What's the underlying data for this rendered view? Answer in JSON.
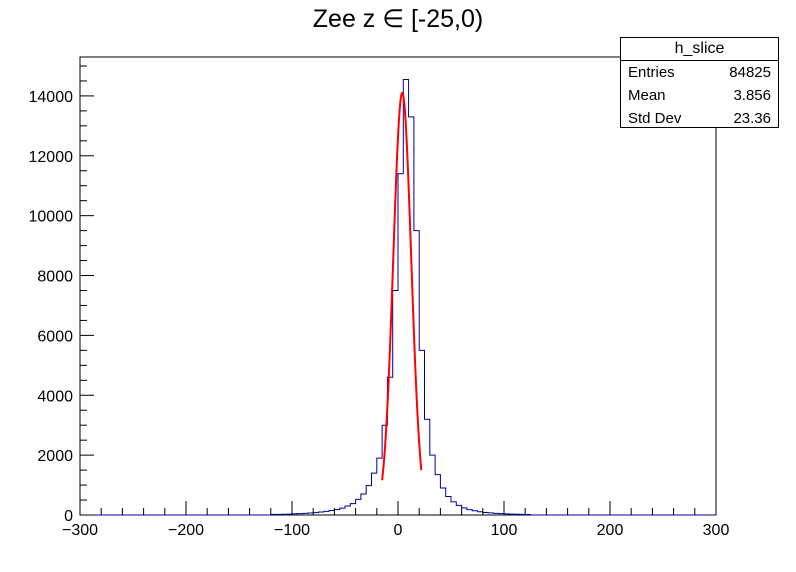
{
  "chart_data": {
    "type": "histogram",
    "title": "Zee z ∈ [-25,0)",
    "xlabel": "",
    "ylabel": "",
    "xlim": [
      -300,
      300
    ],
    "ylim": [
      0,
      15300
    ],
    "xticks": [
      -300,
      -200,
      -100,
      0,
      100,
      200,
      300
    ],
    "yticks": [
      0,
      2000,
      4000,
      6000,
      8000,
      10000,
      12000,
      14000
    ],
    "bin_width": 5,
    "bin_start": -300,
    "histogram_color": "#000099",
    "fit_color": "#ff0000",
    "bins_nonzero": [
      {
        "x": -120,
        "y": 20
      },
      {
        "x": -115,
        "y": 20
      },
      {
        "x": -110,
        "y": 25
      },
      {
        "x": -105,
        "y": 30
      },
      {
        "x": -100,
        "y": 40
      },
      {
        "x": -95,
        "y": 45
      },
      {
        "x": -90,
        "y": 55
      },
      {
        "x": -85,
        "y": 65
      },
      {
        "x": -80,
        "y": 80
      },
      {
        "x": -75,
        "y": 100
      },
      {
        "x": -70,
        "y": 120
      },
      {
        "x": -65,
        "y": 150
      },
      {
        "x": -60,
        "y": 180
      },
      {
        "x": -55,
        "y": 230
      },
      {
        "x": -50,
        "y": 300
      },
      {
        "x": -45,
        "y": 380
      },
      {
        "x": -40,
        "y": 520
      },
      {
        "x": -35,
        "y": 700
      },
      {
        "x": -30,
        "y": 980
      },
      {
        "x": -25,
        "y": 1400
      },
      {
        "x": -20,
        "y": 1900
      },
      {
        "x": -15,
        "y": 3000
      },
      {
        "x": -10,
        "y": 4600
      },
      {
        "x": -5,
        "y": 7500
      },
      {
        "x": 0,
        "y": 11400
      },
      {
        "x": 5,
        "y": 14550
      },
      {
        "x": 10,
        "y": 13300
      },
      {
        "x": 15,
        "y": 9500
      },
      {
        "x": 20,
        "y": 5500
      },
      {
        "x": 25,
        "y": 3200
      },
      {
        "x": 30,
        "y": 2000
      },
      {
        "x": 35,
        "y": 1350
      },
      {
        "x": 40,
        "y": 900
      },
      {
        "x": 45,
        "y": 620
      },
      {
        "x": 50,
        "y": 440
      },
      {
        "x": 55,
        "y": 320
      },
      {
        "x": 60,
        "y": 240
      },
      {
        "x": 65,
        "y": 180
      },
      {
        "x": 70,
        "y": 140
      },
      {
        "x": 75,
        "y": 110
      },
      {
        "x": 80,
        "y": 85
      },
      {
        "x": 85,
        "y": 70
      },
      {
        "x": 90,
        "y": 55
      },
      {
        "x": 95,
        "y": 45
      },
      {
        "x": 100,
        "y": 38
      },
      {
        "x": 105,
        "y": 30
      },
      {
        "x": 110,
        "y": 25
      },
      {
        "x": 115,
        "y": 20
      },
      {
        "x": 120,
        "y": 18
      }
    ],
    "fit": {
      "function": "gaussian",
      "amplitude": 14100,
      "mean": 4,
      "sigma": 8.5,
      "range": [
        -15,
        22
      ]
    }
  },
  "stats": {
    "name": "h_slice",
    "rows": [
      {
        "label": "Entries",
        "value": "84825"
      },
      {
        "label": "Mean",
        "value": "3.856"
      },
      {
        "label": "Std Dev",
        "value": "23.36"
      }
    ]
  }
}
